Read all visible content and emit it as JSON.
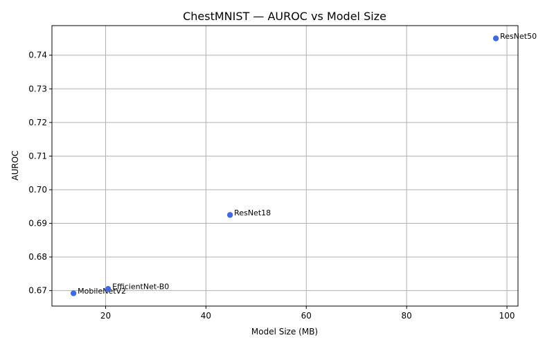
{
  "chart_data": {
    "type": "scatter",
    "title": "ChestMNIST — AUROC vs Model Size",
    "xlabel": "Model Size (MB)",
    "ylabel": "AUROC",
    "xlim": [
      9.3,
      102.2
    ],
    "ylim": [
      0.6654,
      0.7488
    ],
    "xticks": [
      20,
      40,
      60,
      80,
      100
    ],
    "yticks": [
      0.67,
      0.68,
      0.69,
      0.7,
      0.71,
      0.72,
      0.73,
      0.74
    ],
    "ytick_labels": [
      "0.67",
      "0.68",
      "0.69",
      "0.70",
      "0.71",
      "0.72",
      "0.73",
      "0.74"
    ],
    "grid": true,
    "marker_color": "#4169E1",
    "points": [
      {
        "label": "MobileNetV2",
        "x": 13.6,
        "y": 0.6692
      },
      {
        "label": "EfficientNet-B0",
        "x": 20.5,
        "y": 0.6705
      },
      {
        "label": "ResNet18",
        "x": 44.8,
        "y": 0.6925
      },
      {
        "label": "ResNet50",
        "x": 97.8,
        "y": 0.745
      }
    ]
  }
}
